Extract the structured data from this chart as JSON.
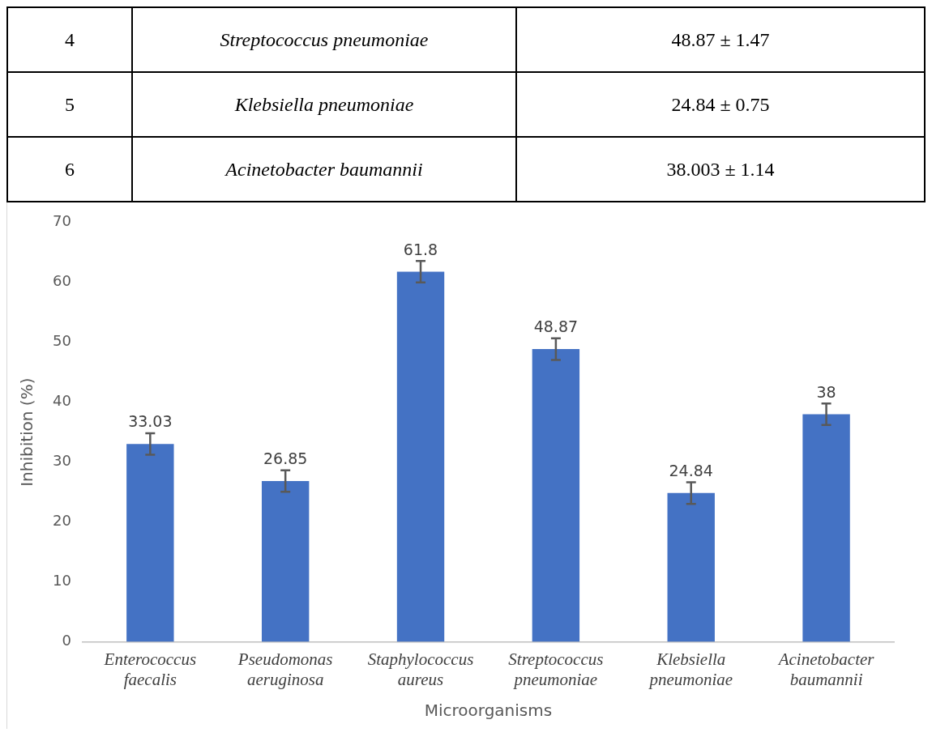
{
  "chart_data": [
    {
      "type": "other",
      "annotations": [
        "4",
        "Streptococcus pneumoniae",
        "48.87 ± 1.47",
        "5",
        "Klebsiella pneumoniae",
        "24.84 ± 0.75",
        "6",
        "Acinetobacter baumannii",
        "38.003 ± 1.14"
      ]
    },
    {
      "type": "bar",
      "xlabel": "Microorganisms",
      "ylabel": "Inhibition (%)",
      "categories": [
        "Enterococcus faecalis",
        "Pseudomonas aeruginosa",
        "Staphylococcus aureus",
        "Streptococcus pneumoniae",
        "Klebsiella pneumoniae",
        "Acinetobacter baumannii"
      ],
      "values": [
        33.03,
        26.85,
        61.8,
        48.87,
        24.84,
        38
      ],
      "errors": [
        1.8,
        1.8,
        1.8,
        1.8,
        1.8,
        1.8
      ],
      "color": "#4472c4",
      "ylim": [
        0,
        70
      ],
      "yticks": [
        0,
        10,
        20,
        30,
        40,
        50,
        60,
        70
      ],
      "grid": false,
      "data_labels": true
    }
  ]
}
